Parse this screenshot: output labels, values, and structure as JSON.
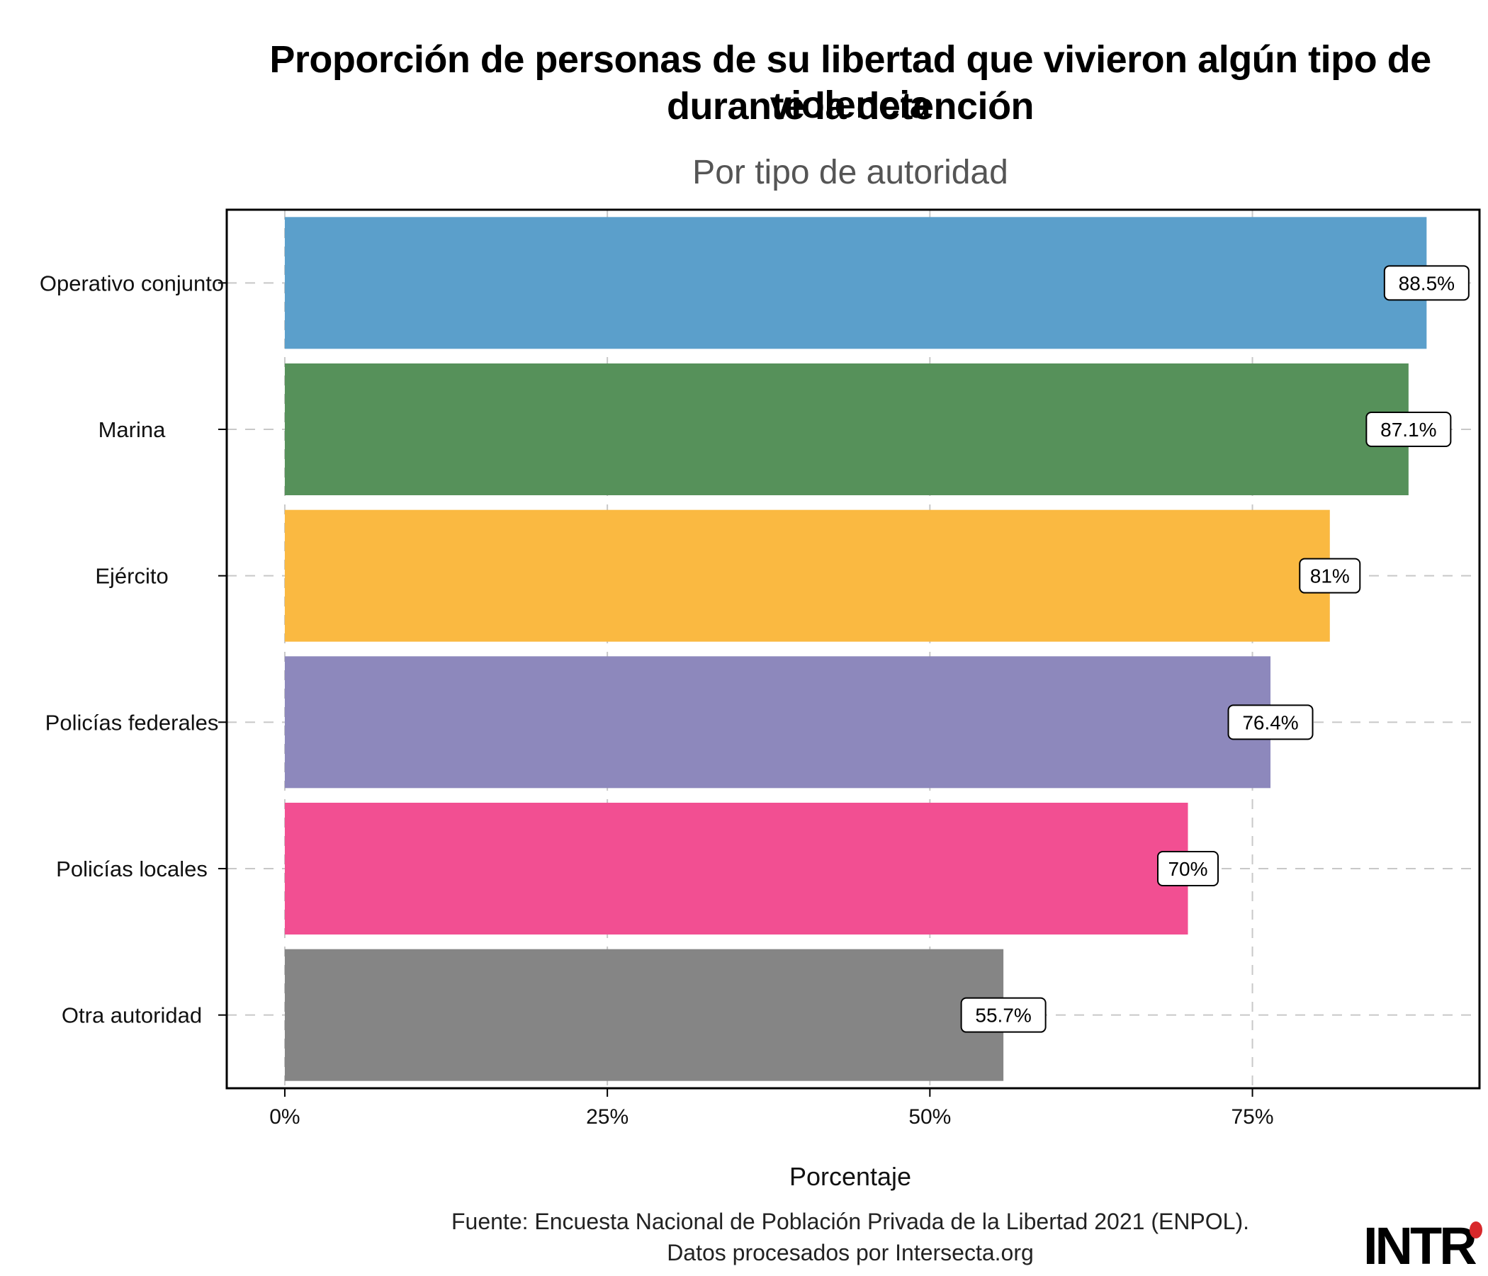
{
  "title_lines": [
    "Proporción de personas de su libertad que vivieron algún tipo de violencia",
    "durante la detención"
  ],
  "subtitle": "Por tipo de autoridad",
  "source_lines": [
    "Fuente: Encuesta Nacional de Población Privada de la Libertad 2021 (ENPOL).",
    "Datos procesados por Intersecta.org"
  ],
  "logo_text": "INTR",
  "colors": {
    "operativo": "#5b9fcb",
    "marina": "#56915a",
    "ejercito": "#fab941",
    "federales": "#8d88bc",
    "locales": "#f24f92",
    "otra": "#858585",
    "logo_dot": "#d8282b"
  },
  "chart_data": {
    "type": "bar",
    "orientation": "horizontal",
    "title": "Proporción de personas de su libertad que vivieron algún tipo de violencia durante la detención",
    "subtitle": "Por tipo de autoridad",
    "xlabel": "Porcentaje",
    "ylabel": "",
    "categories": [
      "Operativo conjunto",
      "Marina",
      "Ejército",
      "Policías federales",
      "Policías locales",
      "Otra autoridad"
    ],
    "values": [
      88.5,
      87.1,
      81,
      76.4,
      70,
      55.7
    ],
    "data_labels": [
      "88.5%",
      "87.1%",
      "81%",
      "76.4%",
      "70%",
      "55.7%"
    ],
    "bar_colors": [
      "#5b9fcb",
      "#56915a",
      "#fab941",
      "#8d88bc",
      "#f24f92",
      "#858585"
    ],
    "xlim": [
      -4.5,
      92.6
    ],
    "xticks": [
      0,
      25,
      50,
      75
    ],
    "xtick_labels": [
      "0%",
      "25%",
      "50%",
      "75%"
    ],
    "grid": true,
    "grid_style": "dashed",
    "legend": "none"
  }
}
